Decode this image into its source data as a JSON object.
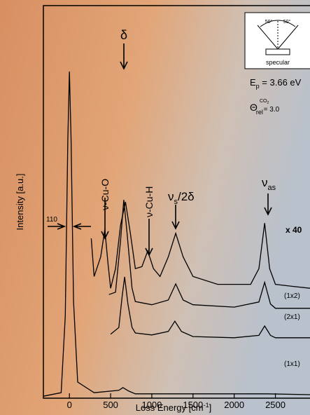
{
  "chart_data": {
    "type": "line",
    "xlabel": {
      "main": "Loss Energy [cm",
      "sup": "-1",
      "end": "]"
    },
    "ylabel": "Intensity [a.u.]",
    "xlim": [
      -316,
      2920
    ],
    "ylim": [
      0,
      100
    ],
    "xticks": [
      0,
      500,
      1000,
      1500,
      2000,
      2500
    ],
    "annotations": {
      "delta": "δ",
      "cu_o": "ν-Cu-O",
      "cu_h": "ν-Cu-H",
      "nus": "ν",
      "nus_sub": "s",
      "nus_rest": "/2δ",
      "nuas": "ν",
      "nuas_sub": "as",
      "width": "110",
      "ep": "E",
      "ep_sub": "p",
      "ep_rest": " = 3.66 eV",
      "theta": "Θ",
      "theta_sup": "CO",
      "theta_sup2": "2",
      "theta_sub": "rel",
      "theta_rest": " =  3.0",
      "angle_left": "50°",
      "angle_right": "50°",
      "specular": "specular"
    },
    "series": [
      {
        "name": "x 40",
        "color": "#000000",
        "x": [
          265,
          300,
          380,
          430,
          470,
          500,
          560,
          620,
          680,
          740,
          800,
          880,
          950,
          1020,
          1100,
          1200,
          1290,
          1380,
          1500,
          1800,
          2200,
          2300,
          2370,
          2430,
          2500,
          2700,
          2920
        ],
        "values": [
          40.7,
          31,
          36,
          43,
          34,
          28,
          33,
          44,
          50,
          42,
          33,
          33.5,
          37.5,
          33,
          31,
          36,
          42,
          36,
          31,
          29,
          29,
          33,
          44.6,
          33,
          29,
          28.5,
          28
        ]
      },
      {
        "name": "(1x2)",
        "color": "#000000",
        "x": [
          480,
          560,
          620,
          660,
          700,
          760,
          800,
          1000,
          1200,
          1290,
          1380,
          1500,
          2000,
          2300,
          2370,
          2440,
          2500,
          2920
        ],
        "values": [
          26.4,
          27,
          40,
          50.5,
          42,
          28,
          24.6,
          23.8,
          25,
          29.1,
          25,
          23.8,
          23.2,
          24.5,
          29.5,
          24,
          22.9,
          22.9
        ]
      },
      {
        "name": "(2x1)",
        "color": "#000000",
        "x": [
          500,
          600,
          640,
          670,
          710,
          760,
          800,
          1000,
          1200,
          1280,
          1360,
          1500,
          2000,
          2300,
          2370,
          2440,
          2500,
          2920
        ],
        "values": [
          16.3,
          18,
          26,
          30.9,
          24,
          18,
          16.6,
          16.1,
          17,
          19.6,
          17,
          15.7,
          15.4,
          16,
          18.4,
          16,
          15.4,
          15.4
        ]
      },
      {
        "name": "(1x1)",
        "color": "#000000",
        "x": [
          -316,
          -100,
          -50,
          -20,
          0,
          20,
          50,
          100,
          300,
          600,
          650,
          720,
          800,
          1300,
          2400,
          2920
        ],
        "values": [
          0.5,
          1.4,
          21,
          65.7,
          83.2,
          65.7,
          24.6,
          4.1,
          1.4,
          2,
          2.7,
          1.8,
          1.1,
          1.1,
          1.1,
          0.9
        ]
      }
    ]
  }
}
